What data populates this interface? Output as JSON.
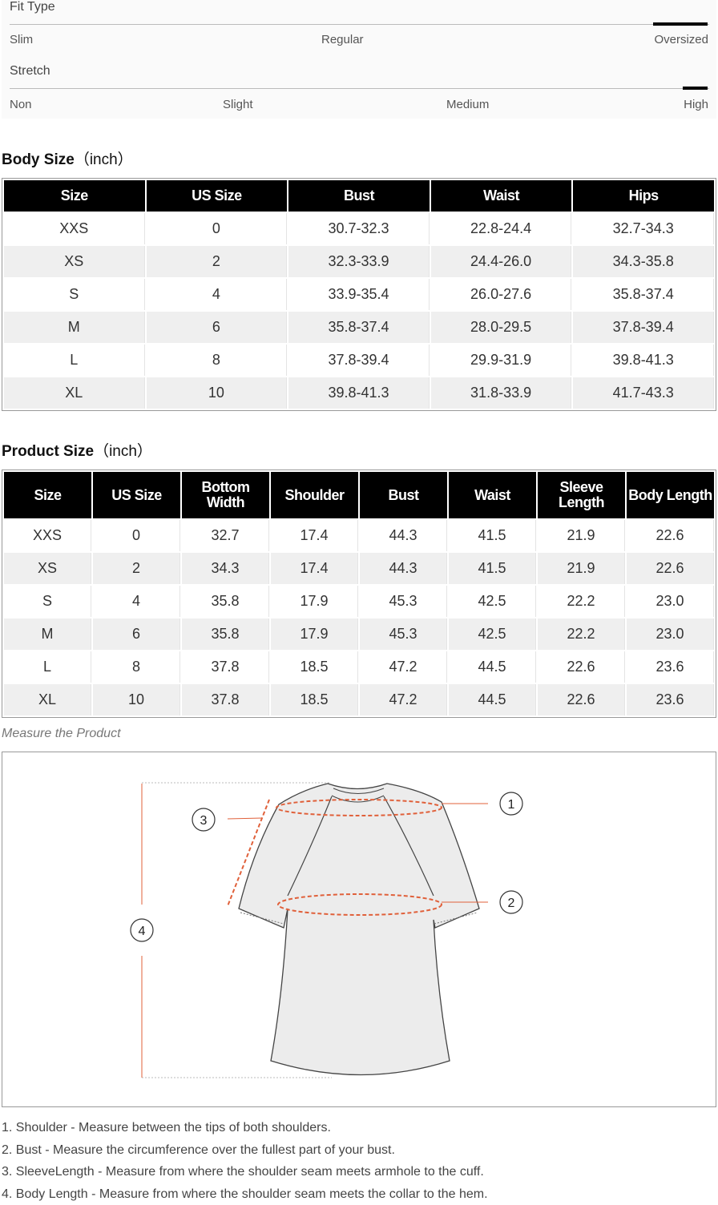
{
  "fit_type": {
    "label": "Fit Type",
    "options": [
      "Slim",
      "Regular",
      "Oversized"
    ],
    "selected": "Oversized"
  },
  "stretch": {
    "label": "Stretch",
    "options": [
      "Non",
      "Slight",
      "Medium",
      "High"
    ],
    "selected": "High"
  },
  "body_size": {
    "title": "Body Size",
    "unit": "（inch）",
    "headers": [
      "Size",
      "US Size",
      "Bust",
      "Waist",
      "Hips"
    ],
    "rows": [
      [
        "XXS",
        "0",
        "30.7-32.3",
        "22.8-24.4",
        "32.7-34.3"
      ],
      [
        "XS",
        "2",
        "32.3-33.9",
        "24.4-26.0",
        "34.3-35.8"
      ],
      [
        "S",
        "4",
        "33.9-35.4",
        "26.0-27.6",
        "35.8-37.4"
      ],
      [
        "M",
        "6",
        "35.8-37.4",
        "28.0-29.5",
        "37.8-39.4"
      ],
      [
        "L",
        "8",
        "37.8-39.4",
        "29.9-31.9",
        "39.8-41.3"
      ],
      [
        "XL",
        "10",
        "39.8-41.3",
        "31.8-33.9",
        "41.7-43.3"
      ]
    ]
  },
  "product_size": {
    "title": "Product Size",
    "unit": "（inch）",
    "headers": [
      "Size",
      "US Size",
      "Bottom Width",
      "Shoulder",
      "Bust",
      "Waist",
      "Sleeve Length",
      "Body Length"
    ],
    "rows": [
      [
        "XXS",
        "0",
        "32.7",
        "17.4",
        "44.3",
        "41.5",
        "21.9",
        "22.6"
      ],
      [
        "XS",
        "2",
        "34.3",
        "17.4",
        "44.3",
        "41.5",
        "21.9",
        "22.6"
      ],
      [
        "S",
        "4",
        "35.8",
        "17.9",
        "45.3",
        "42.5",
        "22.2",
        "23.0"
      ],
      [
        "M",
        "6",
        "35.8",
        "17.9",
        "45.3",
        "42.5",
        "22.2",
        "23.0"
      ],
      [
        "L",
        "8",
        "37.8",
        "18.5",
        "47.2",
        "44.5",
        "22.6",
        "23.6"
      ],
      [
        "XL",
        "10",
        "37.8",
        "18.5",
        "47.2",
        "44.5",
        "22.6",
        "23.6"
      ]
    ]
  },
  "measure": {
    "caption": "Measure the Product",
    "markers": [
      "1",
      "2",
      "3",
      "4"
    ],
    "accent": "#e0603a"
  },
  "notes": [
    "1. Shoulder - Measure between the tips of both shoulders.",
    "2. Bust - Measure the circumference over the fullest part of your bust.",
    "3. SleeveLength - Measure from where the shoulder seam meets armhole to the cuff.",
    "4. Body Length - Measure from where the shoulder seam meets the collar to the hem."
  ]
}
